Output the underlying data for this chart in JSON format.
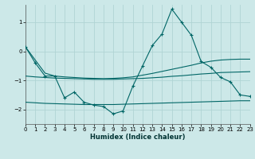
{
  "xlabel": "Humidex (Indice chaleur)",
  "background_color": "#cce8e8",
  "grid_color": "#b0d4d4",
  "line_color": "#006666",
  "xlim": [
    0,
    23
  ],
  "ylim": [
    -2.5,
    1.6
  ],
  "yticks": [
    -2,
    -1,
    0,
    1
  ],
  "xticks": [
    0,
    1,
    2,
    3,
    4,
    5,
    6,
    7,
    8,
    9,
    10,
    11,
    12,
    13,
    14,
    15,
    16,
    17,
    18,
    19,
    20,
    21,
    22,
    23
  ],
  "x": [
    0,
    1,
    2,
    3,
    4,
    5,
    6,
    7,
    8,
    9,
    10,
    11,
    12,
    13,
    14,
    15,
    16,
    17,
    18,
    19,
    20,
    21,
    22,
    23
  ],
  "main_series": [
    0.15,
    -0.4,
    -0.85,
    -0.85,
    -1.6,
    -1.4,
    -1.75,
    -1.85,
    -1.9,
    -2.15,
    -2.05,
    -1.2,
    -0.5,
    0.2,
    0.6,
    1.45,
    1.0,
    0.55,
    -0.35,
    -0.55,
    -0.9,
    -1.05,
    -1.5,
    -1.55
  ],
  "smooth1": [
    0.15,
    -0.3,
    -0.75,
    -0.85,
    -0.88,
    -0.9,
    -0.92,
    -0.93,
    -0.94,
    -0.93,
    -0.91,
    -0.88,
    -0.82,
    -0.76,
    -0.69,
    -0.62,
    -0.55,
    -0.48,
    -0.4,
    -0.34,
    -0.3,
    -0.28,
    -0.27,
    -0.27
  ],
  "smooth2": [
    -0.85,
    -0.88,
    -0.9,
    -0.92,
    -0.93,
    -0.94,
    -0.95,
    -0.96,
    -0.96,
    -0.96,
    -0.95,
    -0.94,
    -0.93,
    -0.91,
    -0.89,
    -0.86,
    -0.84,
    -0.81,
    -0.78,
    -0.76,
    -0.73,
    -0.72,
    -0.71,
    -0.7
  ],
  "smooth3": [
    -1.75,
    -1.77,
    -1.79,
    -1.8,
    -1.81,
    -1.82,
    -1.83,
    -1.83,
    -1.83,
    -1.83,
    -1.82,
    -1.81,
    -1.8,
    -1.79,
    -1.78,
    -1.77,
    -1.76,
    -1.75,
    -1.74,
    -1.73,
    -1.72,
    -1.71,
    -1.7,
    -1.7
  ]
}
